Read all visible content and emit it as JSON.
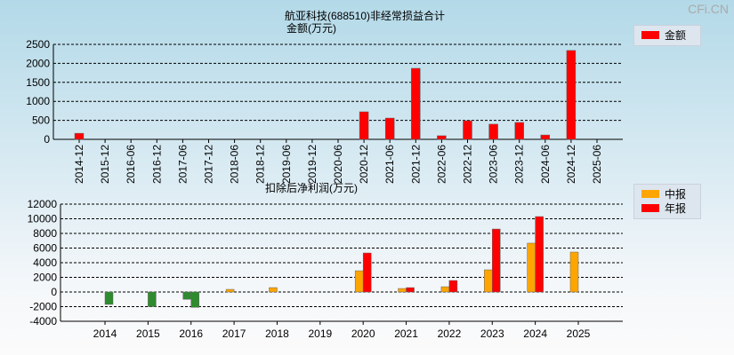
{
  "watermark": "CFi.CN",
  "chart_data": [
    {
      "type": "bar",
      "title": "航亚科技(688510)非经常损益合计",
      "subtitle": "金额(万元)",
      "categories": [
        "2014-12",
        "2015-12",
        "2016-06",
        "2016-12",
        "2017-06",
        "2017-12",
        "2018-06",
        "2018-12",
        "2019-06",
        "2019-12",
        "2020-06",
        "2020-12",
        "2021-06",
        "2021-12",
        "2022-06",
        "2022-12",
        "2023-06",
        "2023-12",
        "2024-06",
        "2024-12",
        "2025-06"
      ],
      "series": [
        {
          "name": "金额",
          "color": "#ff0000",
          "values": [
            160,
            null,
            null,
            null,
            null,
            null,
            null,
            null,
            null,
            null,
            null,
            725,
            560,
            1870,
            95,
            490,
            400,
            445,
            115,
            2340,
            null
          ]
        }
      ],
      "yticks": [
        0,
        500,
        1000,
        1500,
        2000,
        2500
      ],
      "ylim": [
        0,
        2500
      ],
      "grid": true,
      "legend": "right"
    },
    {
      "type": "bar",
      "title": "扣除后净利润(万元)",
      "categories": [
        "2014",
        "2015",
        "2016",
        "2017",
        "2018",
        "2019",
        "2020",
        "2021",
        "2022",
        "2023",
        "2024",
        "2025"
      ],
      "series": [
        {
          "name": "中报",
          "color": "#ffa500",
          "values": [
            null,
            null,
            -1000,
            360,
            600,
            null,
            2900,
            480,
            720,
            3030,
            6670,
            5450
          ]
        },
        {
          "name": "年报",
          "color": "#ff0000",
          "values": [
            -1700,
            -2000,
            -2100,
            null,
            null,
            null,
            5330,
            600,
            1570,
            8600,
            10300,
            null
          ]
        }
      ],
      "negative_color": "#2e8b2e",
      "yticks": [
        -4000,
        -2000,
        0,
        2000,
        4000,
        6000,
        8000,
        10000,
        12000
      ],
      "ylim": [
        -4000,
        12000
      ],
      "grid": true,
      "legend": "right"
    }
  ]
}
